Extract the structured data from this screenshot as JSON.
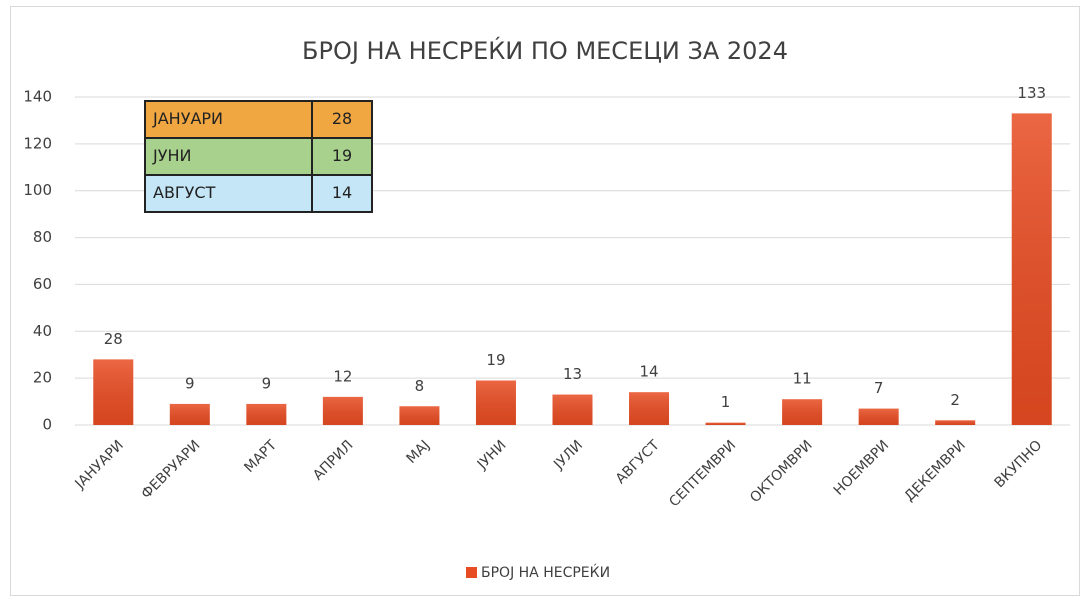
{
  "chart_data": {
    "type": "bar",
    "title": "БРОЈ НА НЕСРЕЌИ ПО МЕСЕЦИ ЗА 2024",
    "categories": [
      "ЈАНУАРИ",
      "ФЕВРУАРИ",
      "МАРТ",
      "АПРИЛ",
      "МАЈ",
      "ЈУНИ",
      "ЈУЛИ",
      "АВГУСТ",
      "СЕПТЕМВРИ",
      "ОКТОМВРИ",
      "НОЕМВРИ",
      "ДЕКЕМВРИ",
      "ВКУПНО"
    ],
    "series": [
      {
        "name": "БРОЈ НА НЕСРЕЌИ",
        "color": "#e84c22",
        "values": [
          28,
          9,
          9,
          12,
          8,
          19,
          13,
          14,
          1,
          11,
          7,
          2,
          133
        ]
      }
    ],
    "ylim": [
      0,
      140
    ],
    "yticks": [
      0,
      20,
      40,
      60,
      80,
      100,
      120,
      140
    ],
    "grid": true,
    "legend": "bottom"
  },
  "table": {
    "rows": [
      {
        "label": "ЈАНУАРИ",
        "value": 28,
        "color": "#f0a742"
      },
      {
        "label": "ЈУНИ",
        "value": 19,
        "color": "#a9d18e"
      },
      {
        "label": "АВГУСТ",
        "value": 14,
        "color": "#c5e6f7"
      }
    ]
  }
}
